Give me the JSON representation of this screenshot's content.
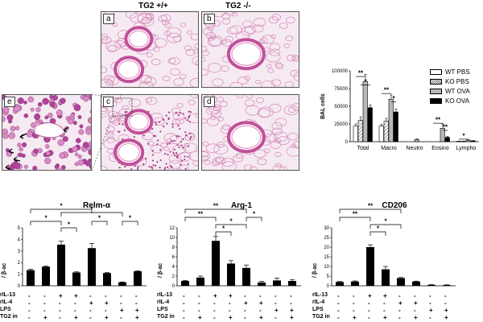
{
  "histology": {
    "col_headers": [
      "TG2 +/+",
      "TG2 -/-"
    ],
    "panels": [
      {
        "label": "a",
        "tissue": "airway",
        "inflamed": false
      },
      {
        "label": "b",
        "tissue": "airway",
        "inflamed": false
      },
      {
        "label": "c",
        "tissue": "airway",
        "inflamed": true
      },
      {
        "label": "d",
        "tissue": "airway",
        "inflamed": false
      },
      {
        "label": "e",
        "tissue": "zoom",
        "inflamed": true
      }
    ]
  },
  "bal_chart": {
    "ylabel": "BAL cells",
    "ylim": [
      0,
      100000
    ],
    "yticks": [
      "0",
      "25000",
      "50000",
      "75000",
      "100000"
    ],
    "ytick_values": [
      0,
      25000,
      50000,
      75000,
      100000
    ],
    "categories": [
      "Total",
      "Macro",
      "Neutro",
      "Eosino",
      "Lympho"
    ],
    "legend": [
      "WT PBS",
      "KO PBS",
      "WT OVA",
      "KO OVA"
    ],
    "colors": {
      "WT PBS": "#ffffff",
      "KO PBS": "#cfcfcf",
      "WT OVA": "#b8b8b8",
      "KO OVA": "#000000"
    },
    "significance": [
      "**",
      "*",
      "**",
      "*",
      "**",
      "**",
      "*"
    ]
  },
  "chart_data": [
    {
      "type": "bar",
      "ylabel": "BAL cells",
      "ylim": [
        0,
        100000
      ],
      "categories": [
        "Total",
        "Macro",
        "Neutro",
        "Eosino",
        "Lympho"
      ],
      "series": [
        {
          "name": "WT PBS",
          "values": [
            22000,
            22000,
            0,
            0,
            500
          ],
          "errors": [
            3000,
            2500,
            0,
            0,
            300
          ]
        },
        {
          "name": "KO PBS",
          "values": [
            30000,
            29000,
            0,
            0,
            500
          ],
          "errors": [
            5000,
            4000,
            0,
            0,
            300
          ]
        },
        {
          "name": "WT OVA",
          "values": [
            85000,
            60000,
            3000,
            19000,
            2000
          ],
          "errors": [
            10000,
            6000,
            1000,
            6000,
            600
          ]
        },
        {
          "name": "KO OVA",
          "values": [
            48000,
            42000,
            0,
            6000,
            1200
          ],
          "errors": [
            4000,
            4000,
            0,
            1500,
            400
          ]
        }
      ],
      "legend_position": "top-right",
      "grid": false
    },
    {
      "type": "bar",
      "title": "Relm-α",
      "ylabel": "/ β-ac",
      "ylim": [
        0,
        5
      ],
      "yticks": [
        "0",
        "1",
        "2",
        "3",
        "4",
        "5"
      ],
      "values": [
        1.35,
        1.65,
        3.55,
        1.15,
        3.25,
        1.1,
        0.3,
        1.25
      ],
      "errors": [
        0.08,
        0.06,
        0.3,
        0.05,
        0.4,
        0.05,
        0.03,
        0.05
      ]
    },
    {
      "type": "bar",
      "title": "Arg-1",
      "ylabel": "/ β-ac",
      "ylim": [
        0,
        12
      ],
      "yticks": [
        "0",
        "2",
        "4",
        "6",
        "8",
        "10",
        "12"
      ],
      "values": [
        1.0,
        1.7,
        9.3,
        4.6,
        3.7,
        0.7,
        1.1,
        1.0
      ],
      "errors": [
        0.1,
        0.3,
        0.9,
        0.6,
        0.6,
        0.2,
        0.5,
        0.3
      ]
    },
    {
      "type": "bar",
      "title": "CD206",
      "ylabel": "/ β-ac",
      "ylim": [
        0,
        30
      ],
      "yticks": [
        "0",
        "5",
        "10",
        "15",
        "20",
        "25",
        "30"
      ],
      "values": [
        2.0,
        2.2,
        20.0,
        8.5,
        4.0,
        2.2,
        0.5,
        0.4
      ],
      "errors": [
        0.2,
        0.3,
        1.2,
        1.5,
        0.3,
        0.2,
        0.1,
        0.1
      ]
    }
  ],
  "treatment_table": {
    "rows": [
      {
        "label": "rIL-13",
        "values": [
          "-",
          "-",
          "+",
          "+",
          "-",
          "-",
          "-",
          "-"
        ]
      },
      {
        "label": "rIL-4",
        "values": [
          "-",
          "-",
          "-",
          "-",
          "+",
          "+",
          "-",
          "-"
        ]
      },
      {
        "label": "LPS",
        "values": [
          "-",
          "-",
          "-",
          "-",
          "-",
          "-",
          "+",
          "+"
        ]
      },
      {
        "label": "TG2 in",
        "values": [
          "-",
          "+",
          "-",
          "+",
          "-",
          "+",
          "-",
          "+"
        ]
      }
    ]
  },
  "sig_brackets": [
    [
      "*",
      "*",
      "*",
      "*",
      "*",
      "*"
    ],
    [
      "**",
      "**",
      "*",
      "*",
      "*"
    ],
    [
      "**",
      "**",
      "*",
      "*"
    ]
  ]
}
